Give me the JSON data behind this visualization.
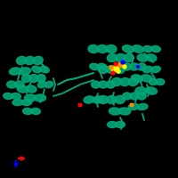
{
  "background_color": "#000000",
  "protein_color": "#00a878",
  "protein_color_dark": "#007a58",
  "ligand_colors": [
    "#ffff00",
    "#ff8800",
    "#ff0000",
    "#0000ff",
    "#00ff00"
  ],
  "fig_width": 2.0,
  "fig_height": 2.0,
  "dpi": 100
}
